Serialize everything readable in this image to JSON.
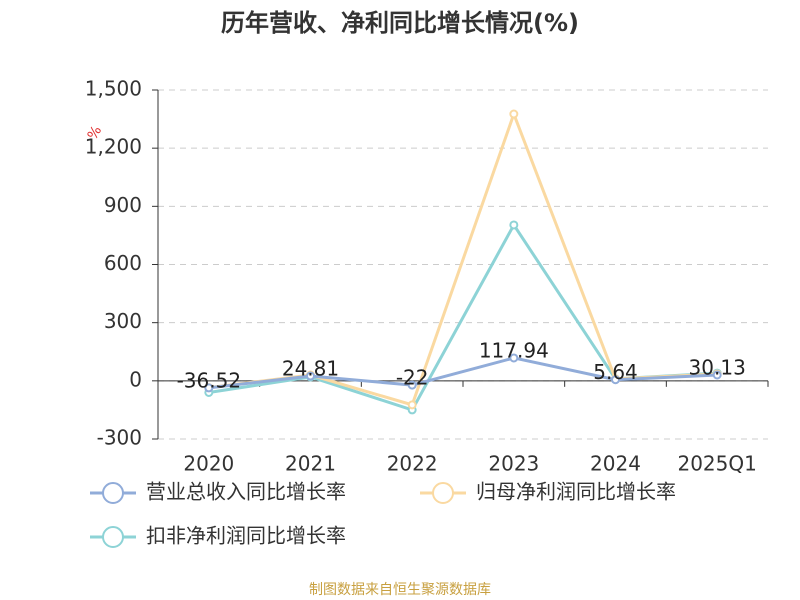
{
  "chart_data": {
    "type": "line",
    "title": "历年营收、净利同比增长情况(%)",
    "y_label": "%",
    "categories": [
      "2020",
      "2021",
      "2022",
      "2023",
      "2024",
      "2025Q1"
    ],
    "series": [
      {
        "name": "营业总收入同比增长率",
        "color": "#91acd9",
        "values": [
          -36.52,
          24.81,
          -22,
          117.94,
          5.64,
          30.13
        ],
        "show_labels": true
      },
      {
        "name": "归母净利润同比增长率",
        "color": "#fad9a1",
        "values": [
          -35,
          30,
          -124,
          1376,
          10,
          35
        ],
        "show_labels": false
      },
      {
        "name": "扣非净利润同比增长率",
        "color": "#8dd3d6",
        "values": [
          -60,
          20,
          -150,
          804,
          10,
          40
        ],
        "show_labels": false
      }
    ],
    "ylim": [
      -300,
      1500
    ],
    "yticks": [
      -300,
      0,
      300,
      600,
      900,
      {
        "value": 1200,
        "label": "1,200"
      },
      {
        "value": 1500,
        "label": "1,500"
      }
    ],
    "grid": true,
    "source": "制图数据来自恒生聚源数据库"
  }
}
